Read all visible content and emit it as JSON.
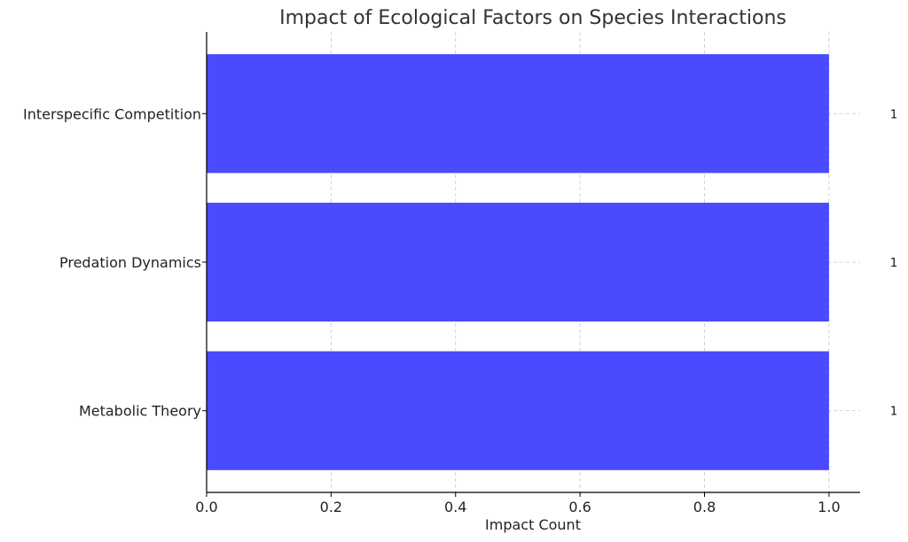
{
  "chart_data": {
    "type": "bar",
    "orientation": "horizontal",
    "title": "Impact of Ecological Factors on Species Interactions",
    "xlabel": "Impact Count",
    "ylabel": "",
    "categories": [
      "Interspecific Competition",
      "Predation Dynamics",
      "Metabolic Theory"
    ],
    "values": [
      1,
      1,
      1
    ],
    "data_labels": [
      "1",
      "1",
      "1"
    ],
    "xlim": [
      0,
      1.05
    ],
    "xticks": [
      0.0,
      0.2,
      0.4,
      0.6,
      0.8,
      1.0
    ],
    "xtick_labels": [
      "0.0",
      "0.2",
      "0.4",
      "0.6",
      "0.8",
      "1.0"
    ],
    "grid": true,
    "bar_color": "#4a4aff"
  }
}
